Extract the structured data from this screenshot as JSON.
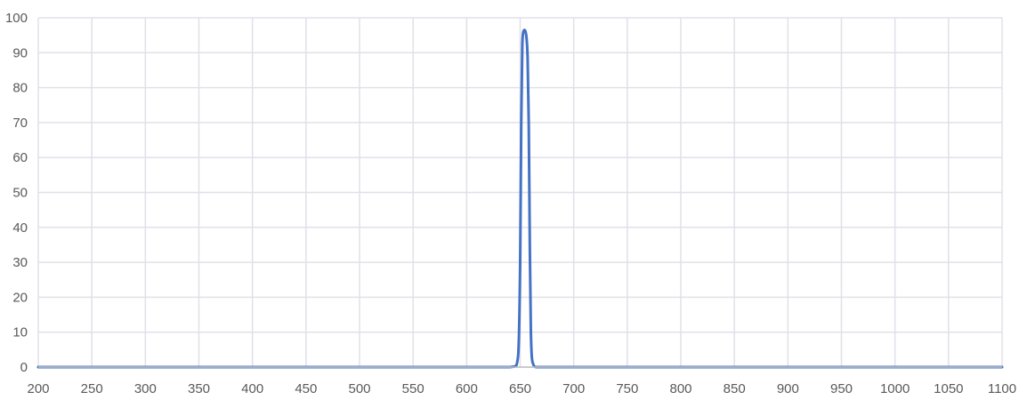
{
  "chart_data": {
    "type": "line",
    "title": "",
    "xlabel": "",
    "ylabel": "",
    "xlim": [
      200,
      1100
    ],
    "ylim": [
      0,
      100
    ],
    "grid": true,
    "legend": "none",
    "x_ticks": [
      "200",
      "250",
      "300",
      "350",
      "400",
      "450",
      "500",
      "550",
      "600",
      "650",
      "700",
      "750",
      "800",
      "850",
      "900",
      "950",
      "1000",
      "1050",
      "1100"
    ],
    "y_ticks": [
      "0",
      "10",
      "20",
      "30",
      "40",
      "50",
      "60",
      "70",
      "80",
      "90",
      "100"
    ],
    "colors": {
      "line": "#4472C4",
      "grid": "#E0E0E8",
      "tick_text": "#595959"
    },
    "series": [
      {
        "x": [
          200,
          600,
          640,
          645,
          648,
          650,
          651,
          652,
          653,
          654,
          655,
          656,
          657,
          658,
          659,
          660,
          662,
          665,
          670,
          700,
          1100
        ],
        "values": [
          0,
          0,
          0,
          0.2,
          3,
          30,
          70,
          92,
          96,
          96.5,
          96,
          94,
          88,
          70,
          35,
          10,
          1,
          0,
          0,
          0,
          0
        ]
      }
    ]
  }
}
